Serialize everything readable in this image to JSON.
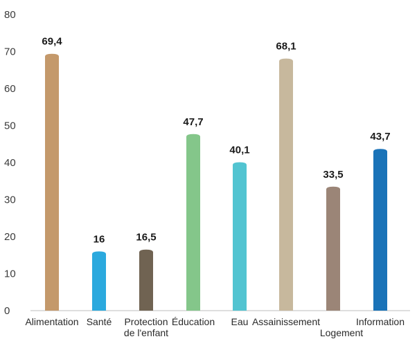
{
  "chart_data": {
    "type": "bar",
    "categories": [
      [
        "Alimentation"
      ],
      [
        "Santé"
      ],
      [
        "Protection",
        "de l'enfant"
      ],
      [
        "Éducation"
      ],
      [
        "Eau"
      ],
      [
        "Assainissement"
      ],
      [
        "Logement"
      ],
      [
        "Information"
      ]
    ],
    "values": [
      69.4,
      16,
      16.5,
      47.7,
      40.1,
      68.1,
      33.5,
      43.7
    ],
    "value_labels": [
      "69,4",
      "16",
      "16,5",
      "47,7",
      "40,1",
      "68,1",
      "33,5",
      "43,7"
    ],
    "bar_colors": [
      "#c4996b",
      "#2ba9de",
      "#706352",
      "#84c68a",
      "#52c4d1",
      "#c7b89d",
      "#9b8577",
      "#1a73b8"
    ],
    "y_ticks": [
      "0",
      "10",
      "20",
      "30",
      "40",
      "50",
      "60",
      "70",
      "80"
    ],
    "ylim": [
      0,
      80
    ],
    "grid": false,
    "legend": "none"
  }
}
